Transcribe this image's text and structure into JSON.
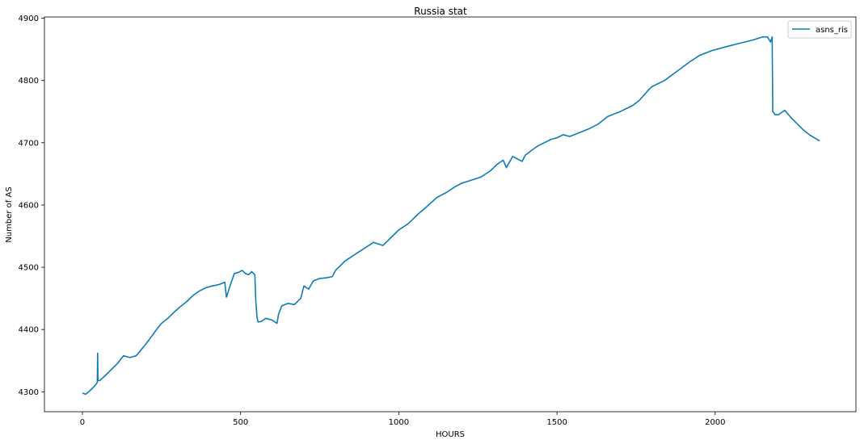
{
  "chart_data": {
    "type": "line",
    "title": "Russia stat",
    "xlabel": "HOURS",
    "ylabel": "Number of AS",
    "xlim": [
      -120,
      2445
    ],
    "ylim": [
      4268,
      4902
    ],
    "xticks": [
      0,
      500,
      1000,
      1500,
      2000
    ],
    "yticks": [
      4300,
      4400,
      4500,
      4600,
      4700,
      4800,
      4900
    ],
    "grid": false,
    "legend": "top-right",
    "colors": {
      "series": "#0e7cb5",
      "axes": "#000000"
    },
    "series": [
      {
        "name": "asns_ris",
        "x": [
          0,
          10,
          20,
          30,
          40,
          47,
          48,
          49,
          55,
          70,
          90,
          110,
          130,
          150,
          170,
          190,
          210,
          230,
          250,
          270,
          290,
          310,
          330,
          350,
          370,
          390,
          410,
          430,
          450,
          455,
          470,
          480,
          495,
          505,
          515,
          525,
          535,
          545,
          548,
          552,
          555,
          565,
          580,
          600,
          615,
          620,
          630,
          650,
          670,
          690,
          700,
          715,
          730,
          750,
          770,
          790,
          800,
          830,
          860,
          890,
          920,
          950,
          980,
          1000,
          1030,
          1060,
          1090,
          1120,
          1150,
          1180,
          1200,
          1230,
          1260,
          1290,
          1310,
          1330,
          1340,
          1360,
          1390,
          1400,
          1420,
          1440,
          1460,
          1480,
          1500,
          1520,
          1540,
          1560,
          1580,
          1600,
          1630,
          1660,
          1700,
          1740,
          1760,
          1790,
          1800,
          1840,
          1880,
          1920,
          1950,
          1990,
          2040,
          2080,
          2120,
          2150,
          2165,
          2175,
          2180,
          2182,
          2190,
          2200,
          2220,
          2240,
          2260,
          2280,
          2300,
          2320,
          2330
        ],
        "values": [
          4298,
          4296,
          4300,
          4305,
          4310,
          4315,
          4362,
          4318,
          4318,
          4325,
          4335,
          4345,
          4358,
          4355,
          4358,
          4370,
          4383,
          4397,
          4410,
          4418,
          4428,
          4437,
          4445,
          4455,
          4462,
          4467,
          4470,
          4472,
          4476,
          4452,
          4475,
          4490,
          4492,
          4495,
          4490,
          4488,
          4493,
          4488,
          4445,
          4420,
          4412,
          4413,
          4418,
          4415,
          4410,
          4425,
          4438,
          4442,
          4440,
          4450,
          4470,
          4465,
          4478,
          4482,
          4483,
          4485,
          4495,
          4510,
          4520,
          4530,
          4540,
          4535,
          4550,
          4560,
          4570,
          4585,
          4598,
          4612,
          4620,
          4630,
          4635,
          4640,
          4645,
          4655,
          4665,
          4672,
          4660,
          4678,
          4670,
          4680,
          4688,
          4695,
          4700,
          4705,
          4708,
          4713,
          4710,
          4714,
          4718,
          4722,
          4730,
          4742,
          4750,
          4760,
          4768,
          4785,
          4790,
          4800,
          4815,
          4830,
          4840,
          4848,
          4855,
          4860,
          4865,
          4870,
          4870,
          4862,
          4870,
          4750,
          4745,
          4745,
          4752,
          4740,
          4730,
          4720,
          4712,
          4706,
          4703
        ]
      }
    ]
  }
}
